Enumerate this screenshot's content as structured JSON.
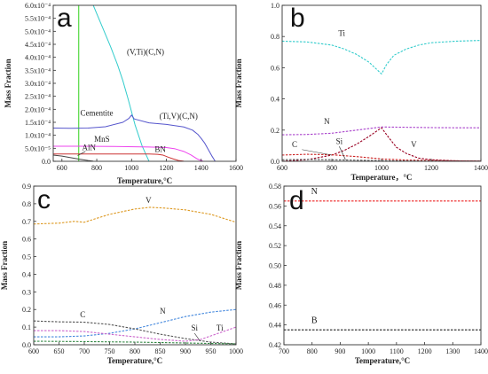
{
  "chart_data": [
    {
      "panel": "a",
      "type": "line",
      "xlabel": "Temperature,°C",
      "ylabel": "Mass Fraction",
      "xlim": [
        550,
        1600
      ],
      "ylim": [
        0,
        0.0006
      ],
      "xticks": [
        600,
        800,
        1000,
        1200,
        1400,
        1600
      ],
      "xtick_labels": [
        "600",
        "800",
        "1000",
        "1200",
        "1400",
        "1600"
      ],
      "yticks": [
        0,
        5e-05,
        0.0001,
        0.00015,
        0.0002,
        0.00025,
        0.0003,
        0.00035,
        0.0004,
        0.00045,
        0.0005,
        0.00055,
        0.0006
      ],
      "ytick_labels": [
        "0.0",
        "5.0x10⁻⁵",
        "1.0x10⁻⁴",
        "1.5x10⁻⁴",
        "2.0x10⁻⁴",
        "2.5x10⁻⁴",
        "3.0x10⁻⁴",
        "3.5x10⁻⁴",
        "4.0x10⁻⁴",
        "4.5x10⁻⁴",
        "5.0x10⁻⁴",
        "5.5x10⁻⁴",
        "6.0x10⁻⁴"
      ],
      "series": [
        {
          "name": "Cementite",
          "color": "#66dd55",
          "style": "solid",
          "x": [
            695,
            695,
            697,
            697
          ],
          "y": [
            0,
            0.0006,
            0.0006,
            0
          ]
        },
        {
          "name": "(V,Ti)(C,N)",
          "color": "#33cccc",
          "style": "solid",
          "x": [
            780,
            830,
            880,
            920,
            950,
            980,
            1000,
            1020,
            1040,
            1060,
            1080,
            1100
          ],
          "y": [
            0.0006,
            0.00052,
            0.00044,
            0.00037,
            0.00031,
            0.00024,
            0.00019,
            0.00014,
            0.0001,
            6e-05,
            3e-05,
            5e-07
          ]
        },
        {
          "name": "(Ti,V)(C,N)",
          "color": "#5555cc",
          "style": "solid",
          "x": [
            550,
            650,
            750,
            850,
            950,
            985,
            1000,
            1015,
            1100,
            1200,
            1300,
            1350,
            1380,
            1400,
            1420,
            1440,
            1460,
            1480
          ],
          "y": [
            0.000128,
            0.000127,
            0.000128,
            0.000133,
            0.00015,
            0.000165,
            0.000178,
            0.000163,
            0.000148,
            0.000142,
            0.000132,
            0.00012,
            0.000104,
            8.8e-05,
            7e-05,
            4.6e-05,
            2.2e-05,
            5e-07
          ]
        },
        {
          "name": "MnS",
          "color": "#ee44ee",
          "style": "solid",
          "x": [
            550,
            700,
            900,
            1100,
            1200,
            1250,
            1300,
            1340,
            1380,
            1410
          ],
          "y": [
            5.8e-05,
            5.8e-05,
            5.7e-05,
            5.5e-05,
            5.3e-05,
            4.8e-05,
            3.8e-05,
            2.5e-05,
            8e-06,
            5e-07
          ]
        },
        {
          "name": "BN",
          "color": "#cc3333",
          "style": "solid",
          "x": [
            550,
            700,
            900,
            1100,
            1150,
            1180,
            1210,
            1240,
            1270,
            1300
          ],
          "y": [
            2.8e-05,
            2.8e-05,
            2.8e-05,
            2.8e-05,
            2.7e-05,
            2.4e-05,
            1.6e-05,
            9e-06,
            3e-06,
            5e-07
          ]
        },
        {
          "name": "AlN",
          "color": "#444444",
          "style": "solid",
          "x": [
            550,
            600,
            650,
            700,
            750,
            780
          ],
          "y": [
            2.4e-05,
            2e-05,
            1.4e-05,
            8e-06,
            3e-06,
            5e-07
          ]
        }
      ],
      "annotations": [
        {
          "text": "(V,Ti)(C,N)",
          "x": 1080,
          "y": 0.00041
        },
        {
          "text": "Cementite",
          "x": 800,
          "y": 0.000175
        },
        {
          "text": "(Ti,V)(C,N)",
          "x": 1270,
          "y": 0.000163
        },
        {
          "text": "MnS",
          "x": 830,
          "y": 7.5e-05
        },
        {
          "text": "AlN",
          "x": 755,
          "y": 4.3e-05
        },
        {
          "text": "BN",
          "x": 1165,
          "y": 3.5e-05
        }
      ]
    },
    {
      "panel": "b",
      "type": "line",
      "xlabel": "Temperature，°C",
      "ylabel": "Mass Fraction",
      "xlim": [
        600,
        1400
      ],
      "ylim": [
        0,
        1.0
      ],
      "xticks": [
        600,
        800,
        1000,
        1200,
        1400
      ],
      "xtick_labels": [
        "600",
        "800",
        "1000",
        "1200",
        "1400"
      ],
      "yticks": [
        0,
        0.2,
        0.4,
        0.6,
        0.8,
        1.0
      ],
      "ytick_labels": [
        "0.0",
        "0.2",
        "0.4",
        "0.6",
        "0.8",
        "1.0"
      ],
      "series": [
        {
          "name": "Ti",
          "color": "#33cccc",
          "style": "dashed",
          "x": [
            600,
            700,
            800,
            850,
            900,
            950,
            980,
            1000,
            1020,
            1050,
            1100,
            1150,
            1200,
            1300,
            1400
          ],
          "y": [
            0.77,
            0.765,
            0.745,
            0.72,
            0.685,
            0.635,
            0.59,
            0.56,
            0.62,
            0.68,
            0.72,
            0.745,
            0.76,
            0.77,
            0.775
          ]
        },
        {
          "name": "N",
          "color": "#aa44cc",
          "style": "dashed",
          "x": [
            600,
            700,
            800,
            900,
            1000,
            1100,
            1200,
            1300,
            1400
          ],
          "y": [
            0.17,
            0.172,
            0.18,
            0.2,
            0.22,
            0.218,
            0.216,
            0.215,
            0.215
          ]
        },
        {
          "name": "V",
          "color": "#990022",
          "style": "dashed",
          "x": [
            600,
            700,
            800,
            850,
            900,
            950,
            1000,
            1030,
            1060,
            1100,
            1150,
            1200,
            1300,
            1400
          ],
          "y": [
            0.0,
            0.01,
            0.04,
            0.07,
            0.11,
            0.16,
            0.215,
            0.15,
            0.09,
            0.05,
            0.02,
            0.01,
            0.003,
            0.001
          ]
        },
        {
          "name": "C",
          "color": "#cc2222",
          "style": "dashed",
          "x": [
            600,
            700,
            800,
            900,
            1000,
            1100,
            1200,
            1300,
            1400
          ],
          "y": [
            0.04,
            0.045,
            0.042,
            0.03,
            0.015,
            0.008,
            0.005,
            0.003,
            0.002
          ]
        },
        {
          "name": "Si",
          "color": "#555555",
          "style": "dashed",
          "x": [
            600,
            700,
            800,
            900,
            1000,
            1100,
            1200,
            1300,
            1400
          ],
          "y": [
            0.01,
            0.012,
            0.01,
            0.007,
            0.004,
            0.002,
            0.001,
            0.001,
            0.001
          ]
        }
      ],
      "annotations": [
        {
          "text": "Ti",
          "x": 840,
          "y": 0.805
        },
        {
          "text": "N",
          "x": 780,
          "y": 0.24
        },
        {
          "text": "C",
          "x": 650,
          "y": 0.09
        },
        {
          "text": "Si",
          "x": 830,
          "y": 0.11
        },
        {
          "text": "V",
          "x": 1130,
          "y": 0.09
        }
      ]
    },
    {
      "panel": "c",
      "type": "line",
      "xlabel": "Temperature,°C",
      "ylabel": "Mass Fraction",
      "xlim": [
        600,
        1000
      ],
      "ylim": [
        0,
        0.9
      ],
      "xticks": [
        600,
        650,
        700,
        750,
        800,
        850,
        900,
        950,
        1000
      ],
      "xtick_labels": [
        "600",
        "650",
        "700",
        "750",
        "800",
        "850",
        "900",
        "950",
        "1000"
      ],
      "yticks": [
        0,
        0.1,
        0.2,
        0.3,
        0.4,
        0.5,
        0.6,
        0.7,
        0.8,
        0.9
      ],
      "ytick_labels": [
        "0.0",
        "0.1",
        "0.2",
        "0.3",
        "0.4",
        "0.5",
        "0.6",
        "0.7",
        "0.8",
        "0.9"
      ],
      "series": [
        {
          "name": "V",
          "color": "#dd9922",
          "style": "dashed",
          "x": [
            600,
            650,
            680,
            700,
            750,
            800,
            830,
            860,
            900,
            950,
            1000
          ],
          "y": [
            0.685,
            0.69,
            0.7,
            0.695,
            0.74,
            0.77,
            0.78,
            0.775,
            0.765,
            0.74,
            0.695
          ]
        },
        {
          "name": "N",
          "color": "#4488dd",
          "style": "dashed",
          "x": [
            600,
            650,
            700,
            750,
            800,
            850,
            900,
            950,
            1000
          ],
          "y": [
            0.045,
            0.045,
            0.05,
            0.065,
            0.09,
            0.125,
            0.16,
            0.185,
            0.2
          ]
        },
        {
          "name": "C",
          "color": "#555555",
          "style": "dashed",
          "x": [
            600,
            650,
            700,
            750,
            800,
            850,
            900,
            950,
            1000
          ],
          "y": [
            0.135,
            0.13,
            0.128,
            0.115,
            0.09,
            0.06,
            0.035,
            0.015,
            0.005
          ]
        },
        {
          "name": "Ti",
          "color": "#cc66cc",
          "style": "dashed",
          "x": [
            600,
            650,
            700,
            750,
            800,
            850,
            900,
            930,
            960,
            1000
          ],
          "y": [
            0.08,
            0.08,
            0.075,
            0.06,
            0.045,
            0.03,
            0.02,
            0.03,
            0.06,
            0.1
          ]
        },
        {
          "name": "Si",
          "color": "#338844",
          "style": "dashed",
          "x": [
            600,
            700,
            800,
            900,
            1000
          ],
          "y": [
            0.02,
            0.018,
            0.015,
            0.01,
            0.005
          ]
        }
      ],
      "annotations": [
        {
          "text": "V",
          "x": 827,
          "y": 0.805
        },
        {
          "text": "C",
          "x": 697,
          "y": 0.155
        },
        {
          "text": "N",
          "x": 855,
          "y": 0.175
        },
        {
          "text": "Si",
          "x": 918,
          "y": 0.08
        },
        {
          "text": "Ti",
          "x": 968,
          "y": 0.08
        }
      ]
    },
    {
      "panel": "d",
      "type": "line",
      "xlabel": "Temperature,°C",
      "ylabel": "Mass Fraction",
      "xlim": [
        700,
        1400
      ],
      "ylim": [
        0.42,
        0.58
      ],
      "xticks": [
        700,
        800,
        900,
        1000,
        1100,
        1200,
        1300,
        1400
      ],
      "xtick_labels": [
        "700",
        "800",
        "900",
        "1000",
        "1100",
        "1200",
        "1300",
        "1400"
      ],
      "yticks": [
        0.42,
        0.44,
        0.46,
        0.48,
        0.5,
        0.52,
        0.54,
        0.56,
        0.58
      ],
      "ytick_labels": [
        "0.42",
        "0.44",
        "0.46",
        "0.48",
        "0.50",
        "0.52",
        "0.54",
        "0.56",
        "0.58"
      ],
      "series": [
        {
          "name": "N",
          "color": "#ee2222",
          "style": "dashed",
          "x": [
            700,
            1400
          ],
          "y": [
            0.565,
            0.565
          ]
        },
        {
          "name": "B",
          "color": "#222222",
          "style": "dashed",
          "x": [
            700,
            1400
          ],
          "y": [
            0.435,
            0.435
          ]
        }
      ],
      "annotations": [
        {
          "text": "N",
          "x": 808,
          "y": 0.572
        },
        {
          "text": "B",
          "x": 808,
          "y": 0.442
        }
      ]
    }
  ]
}
